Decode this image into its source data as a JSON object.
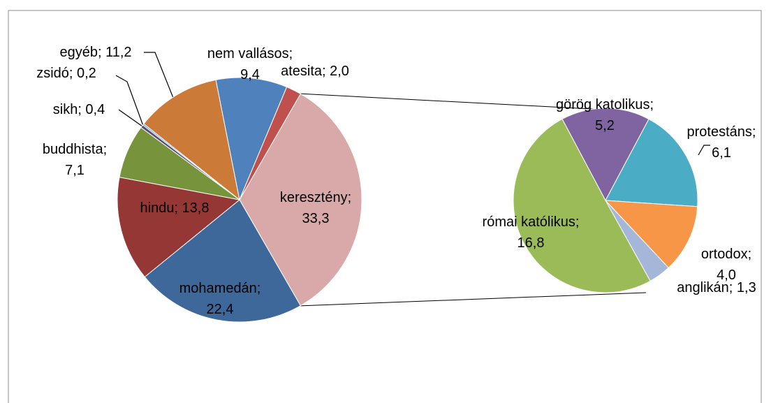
{
  "chart_data": {
    "type": "pie-of-pie",
    "series": [
      {
        "values": [
          33.3,
          22.4,
          13.8,
          7.1,
          0.4,
          0.2,
          11.2,
          9.4,
          2.0
        ],
        "value_labels": [
          "keresztény; 33,3",
          "mohamedán; 22,4",
          "hindu; 13,8",
          "buddhista; 7,1",
          "sikh; 0,4",
          "zsidó; 0,2",
          "egyéb; 11,2",
          "nem vallásos; 9,4",
          "atesita; 2,0"
        ],
        "colors": [
          "#d9a9a9",
          "#3e679a",
          "#953735",
          "#77933c",
          "#604a7b",
          "#4bacc6",
          "#cc7a38",
          "#4f81bd",
          "#c0504d"
        ]
      },
      {
        "values": [
          5.2,
          6.1,
          4.0,
          1.3,
          16.8
        ],
        "value_labels": [
          "görög katolikus; 5,2",
          "protestáns; 6,1",
          "ortodox; 4,0",
          "anglikán; 1,3",
          "római katólikus; 16,8"
        ],
        "colors": [
          "#8064a2",
          "#4bacc6",
          "#f79646",
          "#a5b6d8",
          "#9bbb59"
        ]
      }
    ]
  }
}
